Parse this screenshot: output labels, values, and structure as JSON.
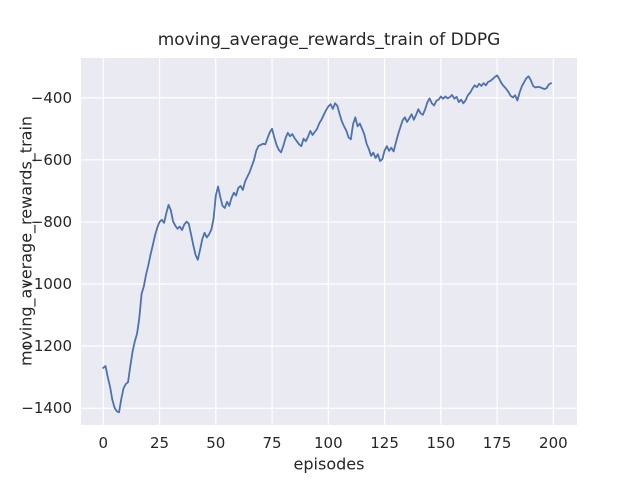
{
  "title": "moving_average_rewards_train of DDPG",
  "colors": {
    "figure_bg": "#ffffff",
    "axes_bg": "#eaeaf2",
    "grid": "#ffffff",
    "line": "#4c72b0",
    "text": "#262626"
  },
  "chart_data": {
    "type": "line",
    "title": "moving_average_rewards_train of DDPG",
    "xlabel": "episodes",
    "ylabel": "moving_average_rewards_train",
    "legend": null,
    "grid": true,
    "x_ticks": [
      0,
      25,
      50,
      75,
      100,
      125,
      150,
      175,
      200
    ],
    "y_ticks": [
      -400,
      -600,
      -800,
      -1000,
      -1200,
      -1400
    ],
    "xlim": [
      -9.9,
      210.5
    ],
    "ylim": [
      -1454,
      -272
    ],
    "series": [
      {
        "name": "moving_average_rewards_train",
        "x_start": 0,
        "x_step": 1,
        "y": [
          -1270,
          -1264,
          -1300,
          -1330,
          -1372,
          -1398,
          -1410,
          -1413,
          -1370,
          -1336,
          -1322,
          -1316,
          -1265,
          -1218,
          -1185,
          -1160,
          -1110,
          -1032,
          -1008,
          -970,
          -940,
          -905,
          -875,
          -843,
          -818,
          -800,
          -793,
          -803,
          -772,
          -745,
          -762,
          -798,
          -812,
          -822,
          -815,
          -826,
          -808,
          -799,
          -806,
          -840,
          -875,
          -906,
          -922,
          -890,
          -855,
          -835,
          -850,
          -840,
          -825,
          -790,
          -715,
          -686,
          -720,
          -748,
          -755,
          -735,
          -748,
          -722,
          -706,
          -715,
          -690,
          -684,
          -697,
          -670,
          -655,
          -640,
          -620,
          -600,
          -570,
          -555,
          -552,
          -548,
          -550,
          -530,
          -511,
          -500,
          -528,
          -552,
          -568,
          -576,
          -555,
          -530,
          -513,
          -524,
          -517,
          -530,
          -540,
          -550,
          -556,
          -532,
          -540,
          -525,
          -507,
          -520,
          -510,
          -500,
          -482,
          -470,
          -455,
          -440,
          -428,
          -421,
          -436,
          -418,
          -426,
          -452,
          -476,
          -492,
          -506,
          -528,
          -534,
          -485,
          -463,
          -492,
          -483,
          -500,
          -518,
          -548,
          -565,
          -587,
          -577,
          -594,
          -582,
          -604,
          -598,
          -570,
          -556,
          -571,
          -561,
          -573,
          -545,
          -518,
          -495,
          -473,
          -463,
          -478,
          -466,
          -453,
          -471,
          -455,
          -437,
          -450,
          -455,
          -438,
          -415,
          -402,
          -418,
          -425,
          -410,
          -406,
          -396,
          -403,
          -396,
          -402,
          -398,
          -391,
          -403,
          -397,
          -414,
          -406,
          -418,
          -408,
          -392,
          -384,
          -371,
          -360,
          -366,
          -355,
          -362,
          -353,
          -360,
          -349,
          -346,
          -340,
          -333,
          -328,
          -340,
          -354,
          -363,
          -371,
          -381,
          -394,
          -399,
          -392,
          -409,
          -383,
          -363,
          -350,
          -337,
          -331,
          -344,
          -362,
          -367,
          -365,
          -366,
          -369,
          -372,
          -369,
          -357,
          -353
        ]
      }
    ]
  }
}
